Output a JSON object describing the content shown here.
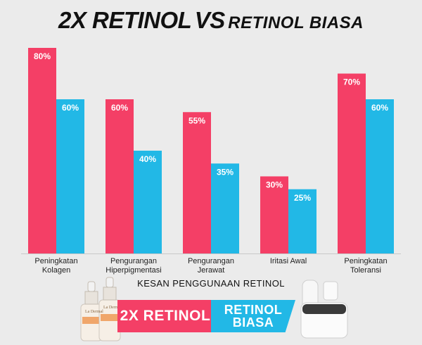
{
  "title": {
    "part1": "2X RETINOL",
    "vs": "VS",
    "part2": "RETINOL BIASA"
  },
  "colors": {
    "retinol_2x": "#f43f66",
    "retinol_biasa": "#22b8e6",
    "background": "#ebebeb"
  },
  "chart_data": {
    "type": "bar",
    "title": "2X RETINOL VS RETINOL BIASA",
    "xlabel": "KESAN PENGGUNAAN RETINOL",
    "ylabel": "",
    "ylim": [
      0,
      80
    ],
    "grid": false,
    "legend_position": "bottom",
    "categories": [
      [
        "Peningkatan",
        "Kolagen"
      ],
      [
        "Pengurangan",
        "Hiperpigmentasi"
      ],
      [
        "Pengurangan",
        "Jerawat"
      ],
      [
        "Iritasi Awal"
      ],
      [
        "Peningkatan",
        "Toleransi"
      ]
    ],
    "series": [
      {
        "name": "2X RETINOL",
        "color": "#f43f66",
        "values": [
          80,
          60,
          55,
          30,
          70
        ],
        "labels": [
          "80%",
          "60%",
          "55%",
          "30%",
          "70%"
        ]
      },
      {
        "name": "RETINOL BIASA",
        "color": "#22b8e6",
        "values": [
          60,
          40,
          35,
          25,
          60
        ],
        "labels": [
          "60%",
          "40%",
          "35%",
          "25%",
          "60%"
        ]
      }
    ]
  },
  "legend": {
    "retinol_2x_label": "2X RETINOL",
    "retinol_biasa_line1": "RETINOL",
    "retinol_biasa_line2": "BIASA"
  },
  "product_brand": "La Dermal"
}
